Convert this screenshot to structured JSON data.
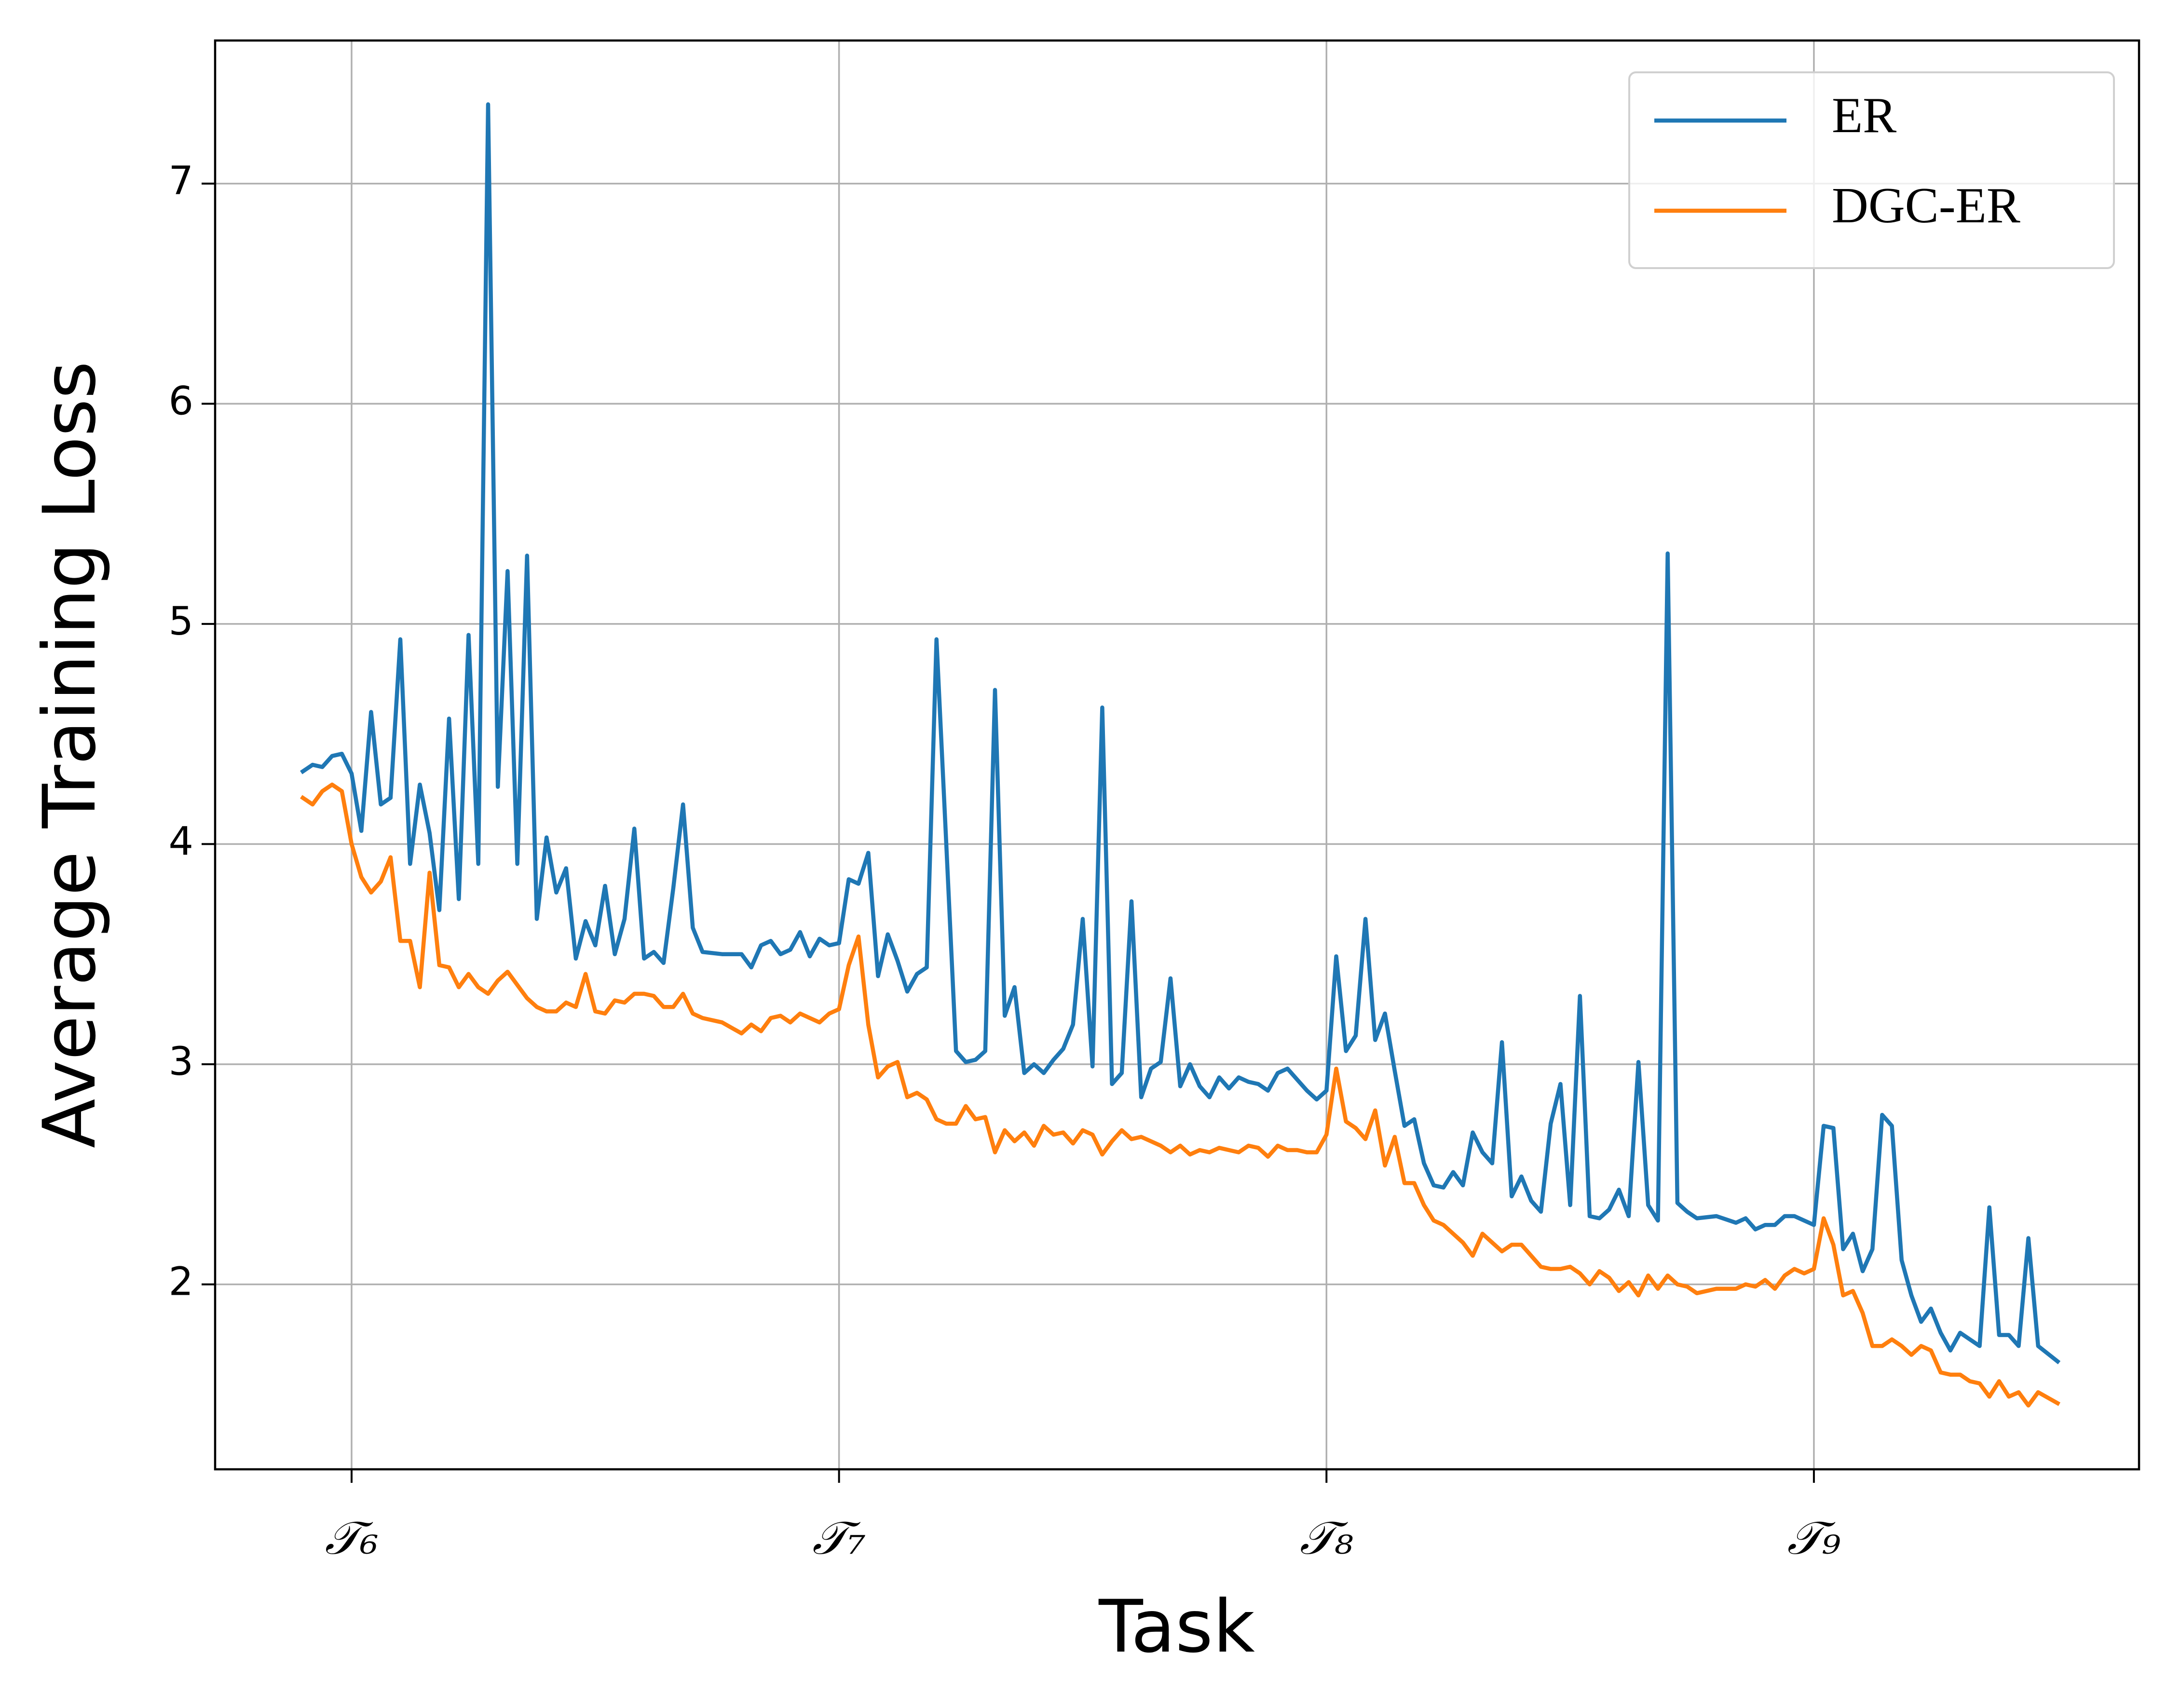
{
  "chart_data": {
    "type": "line",
    "xlabel": "Task",
    "ylabel": "Average Training Loss",
    "xlim": [
      5.72,
      9.667
    ],
    "ylim": [
      1.16,
      7.65
    ],
    "xticks": [
      {
        "value": 6,
        "label": "𝒯₆"
      },
      {
        "value": 7,
        "label": "𝒯₇"
      },
      {
        "value": 8,
        "label": "𝒯₈"
      },
      {
        "value": 9,
        "label": "𝒯₉"
      }
    ],
    "yticks": [
      2,
      3,
      4,
      5,
      6,
      7
    ],
    "grid": true,
    "legend": "upper right",
    "x": [
      5.9,
      5.92,
      5.94,
      5.96,
      5.98,
      6.0,
      6.02,
      6.04,
      6.06,
      6.08,
      6.1,
      6.12,
      6.14,
      6.16,
      6.18,
      6.2,
      6.22,
      6.24,
      6.26,
      6.28,
      6.3,
      6.32,
      6.34,
      6.36,
      6.38,
      6.4,
      6.42,
      6.44,
      6.46,
      6.48,
      6.5,
      6.52,
      6.54,
      6.56,
      6.58,
      6.6,
      6.62,
      6.64,
      6.66,
      6.68,
      6.7,
      6.72,
      6.76,
      6.8,
      6.82,
      6.84,
      6.86,
      6.88,
      6.9,
      6.92,
      6.94,
      6.96,
      6.98,
      7.0,
      7.02,
      7.04,
      7.06,
      7.08,
      7.1,
      7.12,
      7.14,
      7.16,
      7.18,
      7.2,
      7.22,
      7.24,
      7.26,
      7.28,
      7.3,
      7.32,
      7.34,
      7.36,
      7.38,
      7.4,
      7.42,
      7.44,
      7.46,
      7.48,
      7.5,
      7.52,
      7.54,
      7.56,
      7.58,
      7.6,
      7.62,
      7.64,
      7.66,
      7.68,
      7.7,
      7.72,
      7.74,
      7.76,
      7.78,
      7.8,
      7.82,
      7.84,
      7.86,
      7.88,
      7.9,
      7.92,
      7.94,
      7.96,
      7.98,
      8.0,
      8.02,
      8.04,
      8.06,
      8.08,
      8.1,
      8.12,
      8.14,
      8.16,
      8.18,
      8.2,
      8.22,
      8.24,
      8.26,
      8.28,
      8.3,
      8.32,
      8.34,
      8.36,
      8.38,
      8.4,
      8.42,
      8.44,
      8.46,
      8.48,
      8.5,
      8.52,
      8.54,
      8.56,
      8.58,
      8.6,
      8.62,
      8.64,
      8.66,
      8.68,
      8.7,
      8.72,
      8.74,
      8.76,
      8.8,
      8.84,
      8.86,
      8.88,
      8.9,
      8.92,
      8.94,
      8.96,
      8.98,
      9.0,
      9.02,
      9.04,
      9.06,
      9.08,
      9.1,
      9.12,
      9.14,
      9.16,
      9.18,
      9.2,
      9.22,
      9.24,
      9.26,
      9.28,
      9.3,
      9.32,
      9.34,
      9.36,
      9.38,
      9.4,
      9.42,
      9.44,
      9.46,
      9.5
    ],
    "series": [
      {
        "name": "ER",
        "color": "#1f77b4",
        "values": [
          4.33,
          4.36,
          4.35,
          4.4,
          4.41,
          4.32,
          4.06,
          4.6,
          4.18,
          4.21,
          4.93,
          3.91,
          4.27,
          4.05,
          3.7,
          4.57,
          3.75,
          4.95,
          3.91,
          7.36,
          4.26,
          5.24,
          3.91,
          5.31,
          3.66,
          4.03,
          3.78,
          3.89,
          3.48,
          3.65,
          3.54,
          3.81,
          3.5,
          3.66,
          4.07,
          3.48,
          3.51,
          3.46,
          3.8,
          4.18,
          3.62,
          3.51,
          3.5,
          3.5,
          3.44,
          3.54,
          3.56,
          3.5,
          3.52,
          3.6,
          3.49,
          3.57,
          3.54,
          3.55,
          3.84,
          3.82,
          3.96,
          3.4,
          3.59,
          3.47,
          3.33,
          3.41,
          3.44,
          4.93,
          4.0,
          3.06,
          3.01,
          3.02,
          3.06,
          4.7,
          3.22,
          3.35,
          2.96,
          3.0,
          2.96,
          3.02,
          3.07,
          3.18,
          3.66,
          2.99,
          4.62,
          2.91,
          2.96,
          3.74,
          2.85,
          2.98,
          3.01,
          3.39,
          2.9,
          3.0,
          2.9,
          2.85,
          2.94,
          2.89,
          2.94,
          2.92,
          2.91,
          2.88,
          2.96,
          2.98,
          2.93,
          2.88,
          2.84,
          2.88,
          3.49,
          3.06,
          3.13,
          3.66,
          3.11,
          3.23,
          2.97,
          2.72,
          2.75,
          2.55,
          2.45,
          2.44,
          2.51,
          2.45,
          2.69,
          2.6,
          2.55,
          3.1,
          2.4,
          2.49,
          2.38,
          2.33,
          2.73,
          2.91,
          2.36,
          3.31,
          2.31,
          2.3,
          2.34,
          2.43,
          2.31,
          3.01,
          2.36,
          2.29,
          5.32,
          2.37,
          2.33,
          2.3,
          2.31,
          2.28,
          2.3,
          2.25,
          2.27,
          2.27,
          2.31,
          2.31,
          2.29,
          2.27,
          2.72,
          2.71,
          2.16,
          2.23,
          2.06,
          2.16,
          2.77,
          2.72,
          2.11,
          1.95,
          1.83,
          1.89,
          1.78,
          1.7,
          1.78,
          1.75,
          1.72,
          2.35,
          1.77,
          1.77,
          1.72,
          2.21,
          1.72,
          1.65
        ]
      },
      {
        "name": "DGC-ER",
        "color": "#ff7f0e",
        "values": [
          4.21,
          4.18,
          4.24,
          4.27,
          4.24,
          4.0,
          3.85,
          3.78,
          3.83,
          3.94,
          3.56,
          3.56,
          3.35,
          3.87,
          3.45,
          3.44,
          3.35,
          3.41,
          3.35,
          3.32,
          3.38,
          3.42,
          3.36,
          3.3,
          3.26,
          3.24,
          3.24,
          3.28,
          3.26,
          3.41,
          3.24,
          3.23,
          3.29,
          3.28,
          3.32,
          3.32,
          3.31,
          3.26,
          3.26,
          3.32,
          3.23,
          3.21,
          3.19,
          3.14,
          3.18,
          3.15,
          3.21,
          3.22,
          3.19,
          3.23,
          3.21,
          3.19,
          3.23,
          3.25,
          3.45,
          3.58,
          3.18,
          2.94,
          2.99,
          3.01,
          2.85,
          2.87,
          2.84,
          2.75,
          2.73,
          2.73,
          2.81,
          2.75,
          2.76,
          2.6,
          2.7,
          2.65,
          2.69,
          2.63,
          2.72,
          2.68,
          2.69,
          2.64,
          2.7,
          2.68,
          2.59,
          2.65,
          2.7,
          2.66,
          2.67,
          2.65,
          2.63,
          2.6,
          2.63,
          2.59,
          2.61,
          2.6,
          2.62,
          2.61,
          2.6,
          2.63,
          2.62,
          2.58,
          2.63,
          2.61,
          2.61,
          2.6,
          2.6,
          2.68,
          2.98,
          2.74,
          2.71,
          2.66,
          2.79,
          2.54,
          2.67,
          2.46,
          2.46,
          2.36,
          2.29,
          2.27,
          2.23,
          2.19,
          2.13,
          2.23,
          2.19,
          2.15,
          2.18,
          2.18,
          2.13,
          2.08,
          2.07,
          2.07,
          2.08,
          2.05,
          2.0,
          2.06,
          2.03,
          1.97,
          2.01,
          1.95,
          2.04,
          1.98,
          2.04,
          2.0,
          1.99,
          1.96,
          1.98,
          1.98,
          2.0,
          1.99,
          2.02,
          1.98,
          2.04,
          2.07,
          2.05,
          2.07,
          2.3,
          2.18,
          1.95,
          1.97,
          1.87,
          1.72,
          1.72,
          1.75,
          1.72,
          1.68,
          1.72,
          1.7,
          1.6,
          1.59,
          1.59,
          1.56,
          1.55,
          1.49,
          1.56,
          1.49,
          1.51,
          1.45,
          1.51,
          1.46
        ]
      }
    ]
  }
}
